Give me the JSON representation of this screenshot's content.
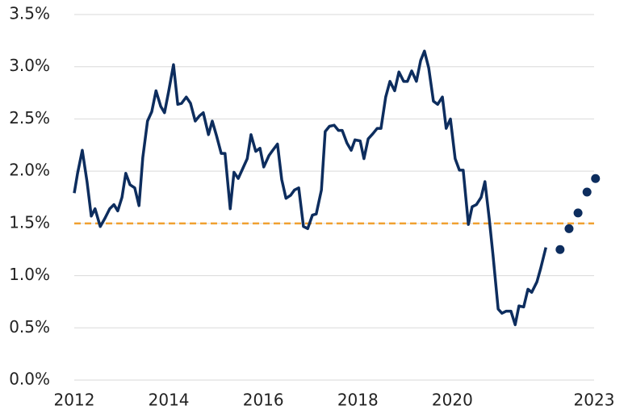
{
  "chart_data": {
    "type": "line",
    "xlim": [
      2012,
      2023
    ],
    "xticks": [
      2012,
      2014,
      2016,
      2018,
      2020,
      2023
    ],
    "ylim": [
      0,
      3.5
    ],
    "yticks": [
      {
        "value": 0,
        "label": "0.0%"
      },
      {
        "value": 0.5,
        "label": "0.5%"
      },
      {
        "value": 1,
        "label": "1.0%"
      },
      {
        "value": 1.5,
        "label": "1.5%"
      },
      {
        "value": 2,
        "label": "2.0%"
      },
      {
        "value": 2.5,
        "label": "2.5%"
      },
      {
        "value": 3,
        "label": "3.0%"
      },
      {
        "value": 3.5,
        "label": "3.5%"
      }
    ],
    "grid": true,
    "reference_line": {
      "value": 1.5,
      "color": "#f0a030"
    },
    "series": [
      {
        "style": "line",
        "color": "#0d2d5e",
        "x": [
          2012,
          2012.07,
          2012.17,
          2012.27,
          2012.36,
          2012.44,
          2012.55,
          2012.65,
          2012.75,
          2012.84,
          2012.92,
          2013.01,
          2013.09,
          2013.18,
          2013.28,
          2013.37,
          2013.45,
          2013.55,
          2013.64,
          2013.73,
          2013.83,
          2013.91,
          2014,
          2014.1,
          2014.19,
          2014.27,
          2014.37,
          2014.46,
          2014.56,
          2014.65,
          2014.73,
          2014.84,
          2014.92,
          2015.01,
          2015.11,
          2015.19,
          2015.3,
          2015.38,
          2015.47,
          2015.57,
          2015.66,
          2015.74,
          2015.84,
          2015.93,
          2016.01,
          2016.12,
          2016.2,
          2016.3,
          2016.39,
          2016.48,
          2016.58,
          2016.66,
          2016.75,
          2016.85,
          2016.94,
          2017.04,
          2017.12,
          2017.23,
          2017.31,
          2017.4,
          2017.5,
          2017.59,
          2017.67,
          2017.77,
          2017.86,
          2017.94,
          2018.05,
          2018.13,
          2018.22,
          2018.32,
          2018.41,
          2018.49,
          2018.59,
          2018.68,
          2018.78,
          2018.87,
          2018.97,
          2019.05,
          2019.14,
          2019.24,
          2019.33,
          2019.41,
          2019.5,
          2019.6,
          2019.69,
          2019.79,
          2019.87,
          2019.96,
          2020.06,
          2020.15,
          2020.23,
          2020.34,
          2020.42,
          2020.51,
          2020.61,
          2020.69,
          2020.78,
          2020.86,
          2020.97,
          2021.05,
          2021.14,
          2021.24,
          2021.33,
          2021.41,
          2021.51,
          2021.6,
          2021.68,
          2021.79,
          2021.87,
          2021.98
        ],
        "values": [
          1.79,
          1.98,
          2.2,
          1.9,
          1.57,
          1.64,
          1.47,
          1.55,
          1.64,
          1.68,
          1.62,
          1.75,
          1.98,
          1.87,
          1.84,
          1.67,
          2.13,
          2.48,
          2.57,
          2.77,
          2.62,
          2.56,
          2.77,
          3.02,
          2.64,
          2.65,
          2.71,
          2.65,
          2.48,
          2.53,
          2.56,
          2.35,
          2.48,
          2.34,
          2.17,
          2.17,
          1.64,
          1.99,
          1.93,
          2.03,
          2.12,
          2.35,
          2.19,
          2.22,
          2.04,
          2.15,
          2.2,
          2.26,
          1.92,
          1.74,
          1.77,
          1.82,
          1.84,
          1.47,
          1.45,
          1.58,
          1.59,
          1.82,
          2.38,
          2.43,
          2.44,
          2.39,
          2.39,
          2.27,
          2.2,
          2.3,
          2.29,
          2.12,
          2.31,
          2.36,
          2.41,
          2.41,
          2.71,
          2.86,
          2.77,
          2.95,
          2.86,
          2.86,
          2.96,
          2.86,
          3.06,
          3.15,
          2.99,
          2.67,
          2.64,
          2.71,
          2.41,
          2.5,
          2.12,
          2.01,
          2.01,
          1.49,
          1.66,
          1.68,
          1.75,
          1.9,
          1.55,
          1.2,
          0.68,
          0.64,
          0.66,
          0.66,
          0.53,
          0.71,
          0.7,
          0.87,
          0.84,
          0.94,
          1.07,
          1.27
        ]
      },
      {
        "style": "markers",
        "color": "#0d2d5e",
        "x": [
          2022.28,
          2022.47,
          2022.66,
          2022.85,
          2023.03
        ],
        "values": [
          1.25,
          1.45,
          1.6,
          1.8,
          1.93
        ]
      }
    ]
  }
}
